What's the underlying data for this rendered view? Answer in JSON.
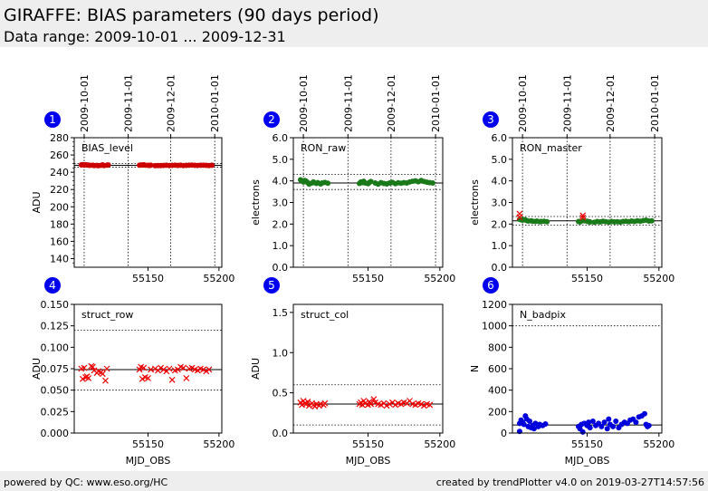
{
  "header": {
    "title": "GIRAFFE: BIAS parameters (90 days period)",
    "subtitle": "Data range: 2009-10-01 ... 2009-12-31"
  },
  "footer": {
    "left": "powered by QC: www.eso.org/HC",
    "right": "created by trendPlotter v4.0 on 2019-03-27T14:57:56"
  },
  "colors": {
    "red": "#cc0000",
    "green": "#1a7a1a",
    "blue": "#0000dd",
    "badge": "#0000ee",
    "marker_red": "#ee0000"
  },
  "chart_data": [
    {
      "type": "scatter",
      "badge": "1",
      "label": "BIAS_level",
      "ylabel": "ADU",
      "xlabel": "",
      "ylim": [
        130,
        280
      ],
      "yticks": [
        "140",
        "160",
        "180",
        "200",
        "220",
        "240",
        "260",
        "280"
      ],
      "ytick_values": [
        140,
        160,
        180,
        200,
        220,
        240,
        260,
        280
      ],
      "xlim": [
        55098,
        55202
      ],
      "xticks": [
        "55150",
        "55200"
      ],
      "xtick_values": [
        55150,
        55200
      ],
      "date_ticks": [
        "2009-10-01",
        "2009-11-01",
        "2009-12-01",
        "2010-01-01"
      ],
      "date_tick_values": [
        55105,
        55136,
        55166,
        55197
      ],
      "ref_line": 248,
      "dotted_lines": [
        250,
        246
      ],
      "marker": "dot",
      "color": "#cc0000",
      "points": [
        [
          55103,
          248.5
        ],
        [
          55104,
          248.8
        ],
        [
          55105,
          248.2
        ],
        [
          55106,
          248.6
        ],
        [
          55107,
          248.4
        ],
        [
          55108,
          248.3
        ],
        [
          55109,
          248.0
        ],
        [
          55111,
          248.1
        ],
        [
          55112,
          247.8
        ],
        [
          55114,
          247.9
        ],
        [
          55115,
          247.6
        ],
        [
          55117,
          248.0
        ],
        [
          55118,
          248.5
        ],
        [
          55119,
          247.8
        ],
        [
          55121,
          248.2
        ],
        [
          55122,
          248.4
        ],
        [
          55144,
          248.1
        ],
        [
          55145,
          248.4
        ],
        [
          55146,
          248.3
        ],
        [
          55147,
          248.7
        ],
        [
          55148,
          248.2
        ],
        [
          55150,
          248.0
        ],
        [
          55151,
          247.9
        ],
        [
          55152,
          248.1
        ],
        [
          55155,
          247.6
        ],
        [
          55157,
          247.8
        ],
        [
          55159,
          247.7
        ],
        [
          55161,
          247.9
        ],
        [
          55163,
          248.1
        ],
        [
          55165,
          247.8
        ],
        [
          55167,
          248.0
        ],
        [
          55169,
          248.2
        ],
        [
          55171,
          247.9
        ],
        [
          55173,
          248.1
        ],
        [
          55175,
          247.8
        ],
        [
          55177,
          248.0
        ],
        [
          55179,
          248.1
        ],
        [
          55181,
          248.3
        ],
        [
          55183,
          248.0
        ],
        [
          55185,
          247.9
        ],
        [
          55187,
          248.1
        ],
        [
          55189,
          248.2
        ],
        [
          55191,
          248.0
        ],
        [
          55193,
          247.8
        ],
        [
          55195,
          248.1
        ]
      ]
    },
    {
      "type": "scatter",
      "badge": "2",
      "label": "RON_raw",
      "ylabel": "electrons",
      "xlabel": "",
      "ylim": [
        0,
        6
      ],
      "yticks": [
        "0.0",
        "1.0",
        "2.0",
        "3.0",
        "4.0",
        "5.0",
        "6.0"
      ],
      "ytick_values": [
        0,
        1,
        2,
        3,
        4,
        5,
        6
      ],
      "xlim": [
        55098,
        55202
      ],
      "xticks": [
        "55150",
        "55200"
      ],
      "xtick_values": [
        55150,
        55200
      ],
      "date_ticks": [
        "2009-10-01",
        "2009-11-01",
        "2009-12-01",
        "2010-01-01"
      ],
      "date_tick_values": [
        55105,
        55136,
        55166,
        55197
      ],
      "ref_line": 3.9,
      "dotted_lines": [
        4.3,
        3.6
      ],
      "marker": "dot",
      "color": "#1a7a1a",
      "points": [
        [
          55103,
          4.05
        ],
        [
          55104,
          4.0
        ],
        [
          55105,
          3.95
        ],
        [
          55106,
          4.02
        ],
        [
          55107,
          3.98
        ],
        [
          55108,
          3.92
        ],
        [
          55109,
          3.85
        ],
        [
          55111,
          3.9
        ],
        [
          55112,
          3.95
        ],
        [
          55114,
          3.88
        ],
        [
          55115,
          3.92
        ],
        [
          55117,
          3.86
        ],
        [
          55118,
          3.9
        ],
        [
          55120,
          3.93
        ],
        [
          55122,
          3.89
        ],
        [
          55144,
          3.88
        ],
        [
          55145,
          3.95
        ],
        [
          55146,
          3.92
        ],
        [
          55147,
          3.98
        ],
        [
          55148,
          3.9
        ],
        [
          55150,
          3.87
        ],
        [
          55151,
          3.93
        ],
        [
          55152,
          3.97
        ],
        [
          55155,
          3.9
        ],
        [
          55157,
          3.85
        ],
        [
          55159,
          3.92
        ],
        [
          55161,
          3.88
        ],
        [
          55163,
          3.86
        ],
        [
          55165,
          3.9
        ],
        [
          55167,
          3.93
        ],
        [
          55169,
          3.87
        ],
        [
          55171,
          3.91
        ],
        [
          55173,
          3.89
        ],
        [
          55175,
          3.92
        ],
        [
          55177,
          3.9
        ],
        [
          55179,
          3.95
        ],
        [
          55181,
          3.98
        ],
        [
          55183,
          4.0
        ],
        [
          55185,
          3.96
        ],
        [
          55187,
          4.02
        ],
        [
          55189,
          3.97
        ],
        [
          55191,
          3.94
        ],
        [
          55193,
          3.92
        ],
        [
          55195,
          3.9
        ]
      ]
    },
    {
      "type": "scatter",
      "badge": "3",
      "label": "RON_master",
      "ylabel": "electrons",
      "xlabel": "",
      "ylim": [
        0,
        6
      ],
      "yticks": [
        "0.0",
        "1.0",
        "2.0",
        "3.0",
        "4.0",
        "5.0",
        "6.0"
      ],
      "ytick_values": [
        0,
        1,
        2,
        3,
        4,
        5,
        6
      ],
      "xlim": [
        55098,
        55202
      ],
      "xticks": [
        "55150",
        "55200"
      ],
      "xtick_values": [
        55150,
        55200
      ],
      "date_ticks": [
        "2009-10-01",
        "2009-11-01",
        "2009-12-01",
        "2010-01-01"
      ],
      "date_tick_values": [
        55105,
        55136,
        55166,
        55197
      ],
      "ref_line": 2.15,
      "dotted_lines": [
        2.35,
        1.95
      ],
      "marker": "dot",
      "color": "#1a7a1a",
      "outliers": [
        [
          55103,
          2.48
        ],
        [
          55103,
          2.32
        ],
        [
          55147,
          2.4
        ],
        [
          55147,
          2.3
        ]
      ],
      "points": [
        [
          55103,
          2.22
        ],
        [
          55104,
          2.2
        ],
        [
          55105,
          2.18
        ],
        [
          55106,
          2.21
        ],
        [
          55107,
          2.19
        ],
        [
          55108,
          2.16
        ],
        [
          55109,
          2.14
        ],
        [
          55111,
          2.15
        ],
        [
          55112,
          2.13
        ],
        [
          55114,
          2.12
        ],
        [
          55115,
          2.14
        ],
        [
          55117,
          2.11
        ],
        [
          55118,
          2.12
        ],
        [
          55120,
          2.13
        ],
        [
          55122,
          2.11
        ],
        [
          55144,
          2.12
        ],
        [
          55145,
          2.1
        ],
        [
          55146,
          2.14
        ],
        [
          55148,
          2.15
        ],
        [
          55150,
          2.13
        ],
        [
          55151,
          2.11
        ],
        [
          55152,
          2.1
        ],
        [
          55155,
          2.08
        ],
        [
          55157,
          2.12
        ],
        [
          55159,
          2.1
        ],
        [
          55161,
          2.13
        ],
        [
          55163,
          2.11
        ],
        [
          55165,
          2.09
        ],
        [
          55167,
          2.12
        ],
        [
          55169,
          2.1
        ],
        [
          55171,
          2.11
        ],
        [
          55173,
          2.09
        ],
        [
          55175,
          2.12
        ],
        [
          55177,
          2.13
        ],
        [
          55179,
          2.11
        ],
        [
          55181,
          2.14
        ],
        [
          55183,
          2.12
        ],
        [
          55185,
          2.15
        ],
        [
          55187,
          2.13
        ],
        [
          55189,
          2.16
        ],
        [
          55191,
          2.18
        ],
        [
          55193,
          2.14
        ],
        [
          55195,
          2.15
        ]
      ]
    },
    {
      "type": "scatter",
      "badge": "4",
      "label": "struct_row",
      "ylabel": "ADU",
      "xlabel": "MJD_OBS",
      "ylim": [
        0,
        0.15
      ],
      "yticks": [
        "0.000",
        "0.025",
        "0.050",
        "0.075",
        "0.100",
        "0.125",
        "0.150"
      ],
      "ytick_values": [
        0,
        0.025,
        0.05,
        0.075,
        0.1,
        0.125,
        0.15
      ],
      "xlim": [
        55098,
        55202
      ],
      "xticks": [
        "55150",
        "55200"
      ],
      "xtick_values": [
        55150,
        55200
      ],
      "ref_line": 0.074,
      "dotted_lines": [
        0.12,
        0.05
      ],
      "marker": "x",
      "color": "#ee0000",
      "points": [
        [
          55103,
          0.075
        ],
        [
          55104,
          0.063
        ],
        [
          55105,
          0.076
        ],
        [
          55106,
          0.065
        ],
        [
          55107,
          0.066
        ],
        [
          55108,
          0.064
        ],
        [
          55110,
          0.078
        ],
        [
          55111,
          0.077
        ],
        [
          55112,
          0.073
        ],
        [
          55114,
          0.07
        ],
        [
          55115,
          0.072
        ],
        [
          55117,
          0.071
        ],
        [
          55118,
          0.069
        ],
        [
          55120,
          0.061
        ],
        [
          55121,
          0.075
        ],
        [
          55144,
          0.074
        ],
        [
          55145,
          0.077
        ],
        [
          55146,
          0.063
        ],
        [
          55147,
          0.076
        ],
        [
          55148,
          0.065
        ],
        [
          55150,
          0.064
        ],
        [
          55152,
          0.074
        ],
        [
          55155,
          0.075
        ],
        [
          55157,
          0.073
        ],
        [
          55159,
          0.076
        ],
        [
          55161,
          0.074
        ],
        [
          55163,
          0.072
        ],
        [
          55165,
          0.075
        ],
        [
          55167,
          0.062
        ],
        [
          55169,
          0.073
        ],
        [
          55171,
          0.074
        ],
        [
          55173,
          0.077
        ],
        [
          55175,
          0.076
        ],
        [
          55177,
          0.064
        ],
        [
          55179,
          0.075
        ],
        [
          55181,
          0.076
        ],
        [
          55183,
          0.074
        ],
        [
          55185,
          0.073
        ],
        [
          55187,
          0.075
        ],
        [
          55189,
          0.074
        ],
        [
          55191,
          0.072
        ],
        [
          55193,
          0.074
        ]
      ]
    },
    {
      "type": "scatter",
      "badge": "5",
      "label": "struct_col",
      "ylabel": "ADU",
      "xlabel": "MJD_OBS",
      "ylim": [
        0,
        1.6
      ],
      "yticks": [
        "0.0",
        "0.5",
        "1.0",
        "1.5"
      ],
      "ytick_values": [
        0,
        0.5,
        1.0,
        1.5
      ],
      "xlim": [
        55098,
        55202
      ],
      "xticks": [
        "55150",
        "55200"
      ],
      "xtick_values": [
        55150,
        55200
      ],
      "ref_line": 0.36,
      "dotted_lines": [
        0.6,
        0.1
      ],
      "marker": "x",
      "color": "#ee0000",
      "points": [
        [
          55103,
          0.38
        ],
        [
          55104,
          0.35
        ],
        [
          55105,
          0.4
        ],
        [
          55106,
          0.37
        ],
        [
          55107,
          0.36
        ],
        [
          55108,
          0.39
        ],
        [
          55109,
          0.34
        ],
        [
          55111,
          0.37
        ],
        [
          55112,
          0.35
        ],
        [
          55113,
          0.33
        ],
        [
          55114,
          0.36
        ],
        [
          55116,
          0.34
        ],
        [
          55117,
          0.36
        ],
        [
          55119,
          0.35
        ],
        [
          55120,
          0.37
        ],
        [
          55144,
          0.36
        ],
        [
          55145,
          0.38
        ],
        [
          55146,
          0.35
        ],
        [
          55147,
          0.4
        ],
        [
          55148,
          0.37
        ],
        [
          55150,
          0.35
        ],
        [
          55151,
          0.39
        ],
        [
          55152,
          0.36
        ],
        [
          55154,
          0.42
        ],
        [
          55155,
          0.38
        ],
        [
          55157,
          0.36
        ],
        [
          55159,
          0.35
        ],
        [
          55161,
          0.37
        ],
        [
          55163,
          0.34
        ],
        [
          55165,
          0.36
        ],
        [
          55167,
          0.38
        ],
        [
          55169,
          0.35
        ],
        [
          55171,
          0.37
        ],
        [
          55173,
          0.36
        ],
        [
          55175,
          0.38
        ],
        [
          55177,
          0.37
        ],
        [
          55179,
          0.4
        ],
        [
          55181,
          0.36
        ],
        [
          55183,
          0.35
        ],
        [
          55185,
          0.37
        ],
        [
          55187,
          0.36
        ],
        [
          55189,
          0.34
        ],
        [
          55191,
          0.36
        ],
        [
          55193,
          0.35
        ]
      ]
    },
    {
      "type": "scatter",
      "badge": "6",
      "label": "N_badpix",
      "ylabel": "N",
      "xlabel": "MJD_OBS",
      "ylim": [
        0,
        1200
      ],
      "yticks": [
        "0",
        "200",
        "400",
        "600",
        "800",
        "1000",
        "1200"
      ],
      "ytick_values": [
        0,
        200,
        400,
        600,
        800,
        1000,
        1200
      ],
      "xlim": [
        55098,
        55202
      ],
      "xticks": [
        "55150",
        "55200"
      ],
      "xtick_values": [
        55150,
        55200
      ],
      "ref_line": 75,
      "dotted_lines": [
        1000
      ],
      "marker": "dot",
      "color": "#0000dd",
      "points": [
        [
          55103,
          90
        ],
        [
          55103,
          15
        ],
        [
          55104,
          120
        ],
        [
          55105,
          100
        ],
        [
          55106,
          80
        ],
        [
          55107,
          160
        ],
        [
          55108,
          130
        ],
        [
          55109,
          60
        ],
        [
          55110,
          110
        ],
        [
          55111,
          50
        ],
        [
          55112,
          70
        ],
        [
          55113,
          40
        ],
        [
          55114,
          90
        ],
        [
          55116,
          60
        ],
        [
          55117,
          80
        ],
        [
          55119,
          70
        ],
        [
          55121,
          85
        ],
        [
          55144,
          60
        ],
        [
          55145,
          40
        ],
        [
          55146,
          80
        ],
        [
          55147,
          10
        ],
        [
          55148,
          90
        ],
        [
          55150,
          70
        ],
        [
          55151,
          100
        ],
        [
          55152,
          50
        ],
        [
          55154,
          110
        ],
        [
          55156,
          70
        ],
        [
          55158,
          90
        ],
        [
          55160,
          60
        ],
        [
          55162,
          100
        ],
        [
          55164,
          40
        ],
        [
          55165,
          130
        ],
        [
          55166,
          80
        ],
        [
          55168,
          60
        ],
        [
          55170,
          110
        ],
        [
          55172,
          50
        ],
        [
          55174,
          80
        ],
        [
          55176,
          100
        ],
        [
          55178,
          90
        ],
        [
          55180,
          120
        ],
        [
          55182,
          130
        ],
        [
          55184,
          100
        ],
        [
          55186,
          150
        ],
        [
          55188,
          160
        ],
        [
          55190,
          180
        ],
        [
          55191,
          80
        ],
        [
          55192,
          60
        ],
        [
          55193,
          70
        ]
      ]
    }
  ]
}
